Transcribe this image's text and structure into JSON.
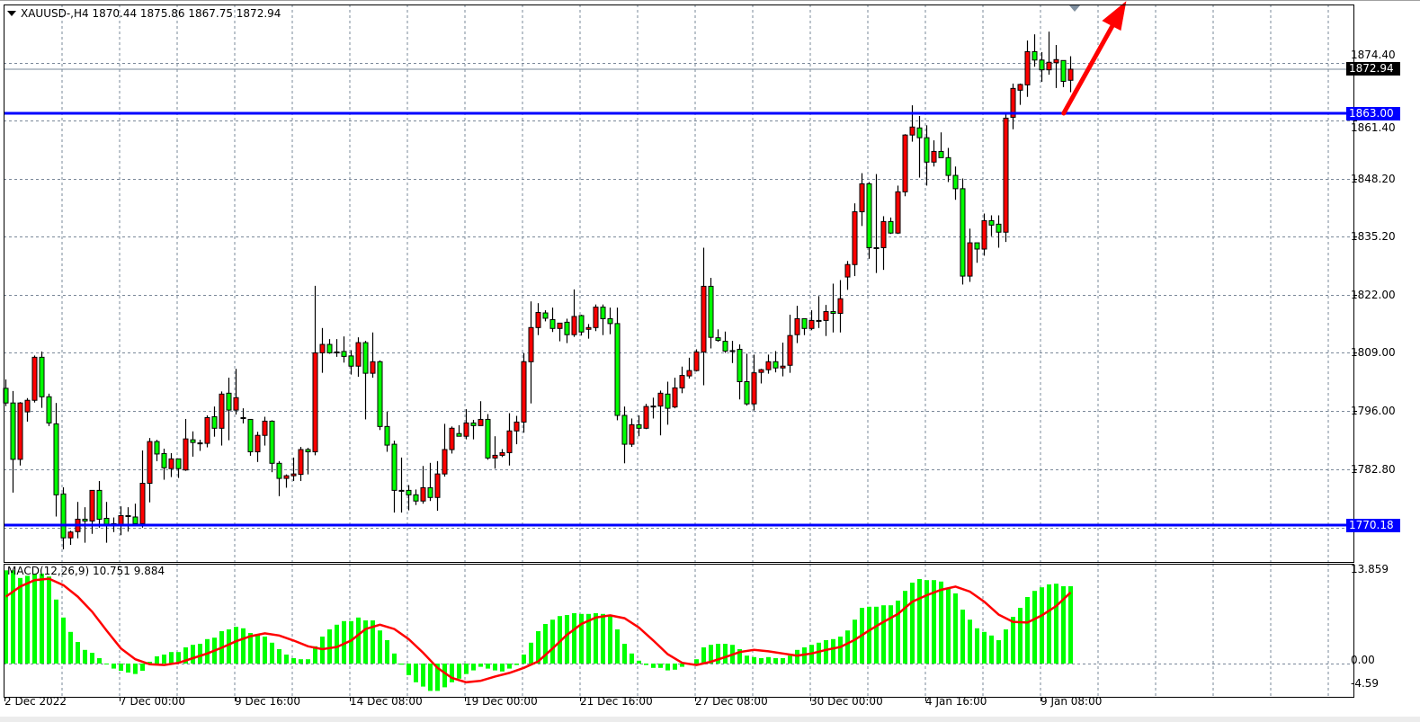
{
  "header": {
    "text": "XAUUSD-,H4  1870.44 1875.86 1867.75 1872.94"
  },
  "macd_header": {
    "text": "MACD(12,26,9) 10.751 9.884"
  },
  "price_labels": {
    "current": "1872.94",
    "line1": "1863.00",
    "line2": "1770.18"
  },
  "macd_axis": {
    "top": "13.859",
    "zero": "0.00",
    "bottom": "-4.59"
  },
  "chart_data": [
    {
      "type": "candlestick",
      "symbol": "XAUUSD-",
      "timeframe": "H4",
      "up_color": "#ff0000",
      "down_color": "#00ff00",
      "grid": true,
      "ylim": [
        1765,
        1888
      ],
      "y_tick_labels": [
        "1874.40",
        "1861.40",
        "1848.20",
        "1835.20",
        "1822.00",
        "1809.00",
        "1796.00",
        "1782.80"
      ],
      "y_grid": [
        1874.4,
        1861.4,
        1848.2,
        1835.2,
        1822.0,
        1809.0,
        1796.0,
        1782.8,
        1769.6
      ],
      "x_ticks": [
        {
          "label": "2 Dec 2022",
          "bar": 0
        },
        {
          "label": "7 Dec 00:00",
          "bar": 16
        },
        {
          "label": "9 Dec 16:00",
          "bar": 32
        },
        {
          "label": "14 Dec 08:00",
          "bar": 48
        },
        {
          "label": "19 Dec 00:00",
          "bar": 64
        },
        {
          "label": "21 Dec 16:00",
          "bar": 80
        },
        {
          "label": "27 Dec 08:00",
          "bar": 96
        },
        {
          "label": "30 Dec 00:00",
          "bar": 112
        },
        {
          "label": "4 Jan 16:00",
          "bar": 128
        },
        {
          "label": "9 Jan 08:00",
          "bar": 144
        }
      ],
      "current_price": 1872.94,
      "horizontal_lines": [
        {
          "price": 1863.0,
          "color": "#0000ff"
        },
        {
          "price": 1770.18,
          "color": "#0000ff"
        }
      ],
      "arrow": {
        "from": {
          "bar": 147.1,
          "price": 1863.0
        },
        "to": {
          "bar": 155.8,
          "price": 1888.3
        },
        "color": "#ff0000"
      },
      "ohlc": [
        [
          1801,
          1803,
          1797,
          1797.7
        ],
        [
          1797.7,
          1800.4,
          1777.5,
          1785
        ],
        [
          1785,
          1797.9,
          1783.6,
          1797.7
        ],
        [
          1795.7,
          1798.8,
          1793.5,
          1798.3
        ],
        [
          1798.3,
          1808.4,
          1797.8,
          1808
        ],
        [
          1808,
          1809.3,
          1796.6,
          1799.1
        ],
        [
          1799.1,
          1799.8,
          1792.5,
          1793.2
        ],
        [
          1793,
          1797.7,
          1772.1,
          1777
        ],
        [
          1777.2,
          1778.7,
          1764.7,
          1767.3
        ],
        [
          1767.3,
          1768.9,
          1765.7,
          1768.6
        ],
        [
          1768.7,
          1775.4,
          1767.2,
          1771.5
        ],
        [
          1771.5,
          1774.2,
          1766.2,
          1771.1
        ],
        [
          1771.1,
          1778,
          1768.2,
          1778
        ],
        [
          1778,
          1780.1,
          1769.6,
          1771.5
        ],
        [
          1771.7,
          1775.4,
          1766.2,
          1770.4
        ],
        [
          1770.5,
          1771.9,
          1768.6,
          1770
        ],
        [
          1770,
          1774.4,
          1767.9,
          1772.3
        ],
        [
          1772.1,
          1774.2,
          1768.7,
          1772.3
        ],
        [
          1772,
          1775,
          1770.2,
          1770.5
        ],
        [
          1770.5,
          1787,
          1769.6,
          1779.6
        ],
        [
          1779.6,
          1789.8,
          1775.3,
          1789
        ],
        [
          1789,
          1789.4,
          1784.6,
          1786.2
        ],
        [
          1786.3,
          1787.4,
          1780.4,
          1783.1
        ],
        [
          1782.9,
          1786.4,
          1781,
          1785.1
        ],
        [
          1785.1,
          1785.1,
          1780.8,
          1782.9
        ],
        [
          1782.6,
          1794.1,
          1782.4,
          1789.6
        ],
        [
          1789.4,
          1791.3,
          1785.6,
          1788.8
        ],
        [
          1788.7,
          1789.4,
          1786.9,
          1788.7
        ],
        [
          1788.6,
          1794.9,
          1787.7,
          1794.4
        ],
        [
          1794.6,
          1796.9,
          1790.1,
          1792
        ],
        [
          1792,
          1800.3,
          1788.1,
          1799.7
        ],
        [
          1799.9,
          1803.4,
          1789.3,
          1796.1
        ],
        [
          1796.1,
          1805.4,
          1795.1,
          1798.9
        ],
        [
          1794.4,
          1796.5,
          1793.1,
          1794.4
        ],
        [
          1794,
          1794,
          1785.8,
          1786.7
        ],
        [
          1786.7,
          1791.2,
          1784.4,
          1790.4
        ],
        [
          1790.4,
          1794.6,
          1788.1,
          1793.6
        ],
        [
          1793.6,
          1793.8,
          1782.1,
          1784.1
        ],
        [
          1784.1,
          1784.6,
          1776.7,
          1780.7
        ],
        [
          1780.7,
          1781.6,
          1778.6,
          1781.3
        ],
        [
          1781.3,
          1785.4,
          1780.1,
          1781.7
        ],
        [
          1781.6,
          1787.8,
          1780.1,
          1787.2
        ],
        [
          1787.2,
          1787.6,
          1781.6,
          1786.7
        ],
        [
          1786.7,
          1824.1,
          1785.9,
          1809
        ],
        [
          1809,
          1814.6,
          1804.5,
          1810.9
        ],
        [
          1810.9,
          1812.1,
          1808.8,
          1809
        ],
        [
          1809.2,
          1812.1,
          1808.1,
          1809.2
        ],
        [
          1809.3,
          1812.7,
          1806.8,
          1808.2
        ],
        [
          1808.3,
          1809.6,
          1804.1,
          1806
        ],
        [
          1806,
          1812.5,
          1803.6,
          1811.3
        ],
        [
          1811.3,
          1811.7,
          1794,
          1804.4
        ],
        [
          1804.4,
          1813.6,
          1803.4,
          1807
        ],
        [
          1807,
          1807.3,
          1791.6,
          1792.4
        ],
        [
          1792.4,
          1795.7,
          1786.7,
          1788.2
        ],
        [
          1788.4,
          1789.2,
          1773,
          1778
        ],
        [
          1778,
          1785.4,
          1773,
          1778
        ],
        [
          1778,
          1779.2,
          1773.5,
          1777
        ],
        [
          1777,
          1778.2,
          1774.7,
          1775.6
        ],
        [
          1775.6,
          1783.5,
          1775,
          1778.6
        ],
        [
          1778.6,
          1784.2,
          1775.6,
          1776.4
        ],
        [
          1776.4,
          1784.6,
          1773.4,
          1781.7
        ],
        [
          1781.7,
          1793,
          1781.1,
          1787.2
        ],
        [
          1787.2,
          1792.4,
          1786.3,
          1792
        ],
        [
          1790.8,
          1792.7,
          1790.2,
          1790.2
        ],
        [
          1790.2,
          1796.3,
          1789.5,
          1793.2
        ],
        [
          1793.2,
          1793.9,
          1789.5,
          1792.6
        ],
        [
          1792.6,
          1798.1,
          1792.6,
          1794
        ],
        [
          1794,
          1795.2,
          1784.9,
          1785.3
        ],
        [
          1785.3,
          1790.2,
          1782.9,
          1785.9
        ],
        [
          1785.9,
          1787.3,
          1785.5,
          1786.5
        ],
        [
          1786.5,
          1795.4,
          1783.6,
          1791.4
        ],
        [
          1791.4,
          1794.8,
          1788.4,
          1793.4
        ],
        [
          1793.4,
          1808.9,
          1791,
          1807
        ],
        [
          1807,
          1820.6,
          1797.6,
          1814.7
        ],
        [
          1814.7,
          1820.2,
          1813,
          1818.1
        ],
        [
          1818,
          1818.6,
          1816.1,
          1816.8
        ],
        [
          1816.5,
          1819.2,
          1813.7,
          1814.5
        ],
        [
          1814.5,
          1815.7,
          1811.6,
          1815.7
        ],
        [
          1815.9,
          1816.7,
          1811.2,
          1813.1
        ],
        [
          1813.1,
          1823.3,
          1812.6,
          1817.2
        ],
        [
          1817.4,
          1817.6,
          1812.9,
          1813.7
        ],
        [
          1814.3,
          1815.5,
          1812.2,
          1814.7
        ],
        [
          1814.7,
          1819.9,
          1813.9,
          1819.3
        ],
        [
          1819.3,
          1819.9,
          1813,
          1816.7
        ],
        [
          1816.7,
          1819.2,
          1813.2,
          1815.6
        ],
        [
          1815.6,
          1819.2,
          1793.8,
          1794.9
        ],
        [
          1794.9,
          1796.9,
          1784.1,
          1788.4
        ],
        [
          1788.4,
          1794.2,
          1787.8,
          1792.8
        ],
        [
          1792.8,
          1794.9,
          1790.2,
          1792
        ],
        [
          1792,
          1797.5,
          1791.8,
          1796.9
        ],
        [
          1797,
          1798.9,
          1794.2,
          1797
        ],
        [
          1797,
          1800.5,
          1790.4,
          1799.9
        ],
        [
          1799.7,
          1802.5,
          1792.8,
          1796.5
        ],
        [
          1796.8,
          1803.4,
          1796.5,
          1801.1
        ],
        [
          1801.1,
          1805.9,
          1799.9,
          1803.9
        ],
        [
          1803.8,
          1807.9,
          1803.2,
          1805
        ],
        [
          1805,
          1809.8,
          1804.8,
          1809.2
        ],
        [
          1809.2,
          1832.7,
          1801.7,
          1824
        ],
        [
          1824,
          1825.9,
          1810,
          1812.5
        ],
        [
          1812.4,
          1814.3,
          1811.5,
          1811.8
        ],
        [
          1811.6,
          1813.8,
          1809,
          1809.4
        ],
        [
          1809.5,
          1811.7,
          1806.7,
          1809.5
        ],
        [
          1809.8,
          1810.9,
          1798.5,
          1802.5
        ],
        [
          1802.5,
          1808.8,
          1797.1,
          1797.5
        ],
        [
          1797.5,
          1808.6,
          1796,
          1804.5
        ],
        [
          1804.6,
          1805.4,
          1802.1,
          1805.2
        ],
        [
          1805.2,
          1808.6,
          1804.3,
          1807
        ],
        [
          1807,
          1809.4,
          1804.6,
          1805.6
        ],
        [
          1805.6,
          1811.3,
          1803.7,
          1806
        ],
        [
          1806.2,
          1817.6,
          1804.5,
          1812.9
        ],
        [
          1813.1,
          1819.6,
          1811.2,
          1816.7
        ],
        [
          1816.7,
          1816.7,
          1813,
          1814.5
        ],
        [
          1814.5,
          1818.6,
          1814.1,
          1816.3
        ],
        [
          1816.3,
          1821.8,
          1814.6,
          1816.3
        ],
        [
          1816.3,
          1819.8,
          1812.8,
          1818.3
        ],
        [
          1818.3,
          1824.6,
          1813.6,
          1817.9
        ],
        [
          1817.9,
          1825.4,
          1813.6,
          1821.2
        ],
        [
          1826.1,
          1829.7,
          1823.2,
          1828.9
        ],
        [
          1828.9,
          1842.7,
          1826.3,
          1840.8
        ],
        [
          1840.8,
          1849.5,
          1837.6,
          1847.1
        ],
        [
          1847.1,
          1847.5,
          1830.2,
          1832.7
        ],
        [
          1832.7,
          1849.3,
          1827,
          1832.7
        ],
        [
          1832.7,
          1839.8,
          1827.7,
          1838.6
        ],
        [
          1838.6,
          1839.5,
          1835.8,
          1836
        ],
        [
          1836,
          1846.7,
          1835.8,
          1845.3
        ],
        [
          1845.3,
          1858.3,
          1844.3,
          1858.1
        ],
        [
          1858.1,
          1864.8,
          1856.6,
          1859.9
        ],
        [
          1859.7,
          1862.4,
          1848.5,
          1857.5
        ],
        [
          1857.5,
          1860.3,
          1846.7,
          1852
        ],
        [
          1852,
          1856.9,
          1851,
          1854.4
        ],
        [
          1854.4,
          1858.7,
          1853,
          1853
        ],
        [
          1853,
          1855.2,
          1847.5,
          1849
        ],
        [
          1849,
          1851,
          1843.5,
          1846
        ],
        [
          1846,
          1848.3,
          1824.4,
          1826.3
        ],
        [
          1826.3,
          1837,
          1825,
          1833.8
        ],
        [
          1833.8,
          1833.8,
          1829.3,
          1832.4
        ],
        [
          1832.4,
          1840.4,
          1830.9,
          1838.8
        ],
        [
          1838.8,
          1840,
          1835.3,
          1837.8
        ],
        [
          1838,
          1840,
          1832.7,
          1836.2
        ],
        [
          1836.2,
          1862.7,
          1834,
          1861.9
        ],
        [
          1862.1,
          1869.7,
          1859.4,
          1868.6
        ],
        [
          1868.2,
          1869.7,
          1864.9,
          1869.5
        ],
        [
          1869.4,
          1879.4,
          1866.7,
          1876.9
        ],
        [
          1876.9,
          1880.8,
          1873.5,
          1875
        ],
        [
          1875,
          1876.8,
          1870.1,
          1872.8
        ],
        [
          1872.8,
          1881.4,
          1871.7,
          1874.5
        ],
        [
          1874.4,
          1878.4,
          1868.7,
          1875.1
        ],
        [
          1874.9,
          1874.9,
          1868.9,
          1870.2
        ],
        [
          1870.44,
          1875.86,
          1867.75,
          1872.94
        ]
      ]
    },
    {
      "type": "bar+line",
      "name": "MACD(12,26,9)",
      "ylim": [
        -4.59,
        13.859
      ],
      "histogram_color": "#00ff00",
      "signal_color": "#ff0000",
      "histogram": [
        12.96,
        12.96,
        11.9,
        12.2,
        12.5,
        12.5,
        12.1,
        8.9,
        6.4,
        4.4,
        3.0,
        1.9,
        1.5,
        0.75,
        -0.05,
        -0.7,
        -1.0,
        -1.25,
        -1.45,
        -1.0,
        0.25,
        1.0,
        1.25,
        1.6,
        1.6,
        2.25,
        2.6,
        2.75,
        3.4,
        3.6,
        4.5,
        4.75,
        5.1,
        4.9,
        4.25,
        4.0,
        3.75,
        2.9,
        2.0,
        1.25,
        0.75,
        0.6,
        0.6,
        2.4,
        3.75,
        4.75,
        5.4,
        5.9,
        5.9,
        6.4,
        6.0,
        6.0,
        4.6,
        3.25,
        1.4,
        -0.15,
        -1.6,
        -2.6,
        -3.2,
        -3.8,
        -3.8,
        -3.3,
        -2.6,
        -2.1,
        -1.45,
        -0.95,
        -0.45,
        -0.7,
        -0.95,
        -1.1,
        -0.7,
        -0.2,
        1.25,
        2.9,
        4.5,
        5.5,
        6.1,
        6.6,
        6.75,
        7.0,
        6.9,
        6.9,
        7.0,
        6.9,
        6.6,
        4.75,
        2.75,
        1.4,
        0.4,
        -0.2,
        -0.6,
        -0.6,
        -0.95,
        -0.85,
        -0.45,
        0,
        0.6,
        2.25,
        2.6,
        2.75,
        2.75,
        2.6,
        2.0,
        1.1,
        0.9,
        0.75,
        0.9,
        0.75,
        0.75,
        1.1,
        1.9,
        2.25,
        2.6,
        2.9,
        3.25,
        3.4,
        3.75,
        4.6,
        6.1,
        7.75,
        7.9,
        7.9,
        8.1,
        8.1,
        8.75,
        10.1,
        11.25,
        11.75,
        11.6,
        11.6,
        11.4,
        10.5,
        9.75,
        7.5,
        6.1,
        4.9,
        4.4,
        3.9,
        3.25,
        4.75,
        6.5,
        7.75,
        9.25,
        10.1,
        10.6,
        11.0,
        11.1,
        10.75,
        10.751
      ],
      "signal_even_bars": [
        9.3,
        10.7,
        11.6,
        11.8,
        10.9,
        9.3,
        7.2,
        4.6,
        2.1,
        0.6,
        -0.1,
        -0.2,
        0.1,
        0.75,
        1.4,
        2.2,
        3.1,
        3.8,
        4.2,
        3.9,
        3.2,
        2.4,
        2.0,
        2.3,
        3.2,
        4.8,
        5.4,
        4.8,
        3.4,
        1.5,
        -0.6,
        -2.0,
        -2.6,
        -2.4,
        -1.8,
        -1.3,
        -0.6,
        0.3,
        2.1,
        4.0,
        5.5,
        6.4,
        6.7,
        6.3,
        5.0,
        3.2,
        1.3,
        0.1,
        -0.2,
        0.25,
        0.9,
        1.6,
        1.9,
        1.7,
        1.4,
        1.1,
        1.4,
        1.9,
        2.3,
        3.3,
        4.6,
        5.8,
        6.9,
        8.6,
        9.5,
        10.25,
        10.7,
        10.0,
        8.6,
        6.8,
        5.8,
        5.7,
        6.7,
        8.0,
        9.884
      ]
    }
  ]
}
